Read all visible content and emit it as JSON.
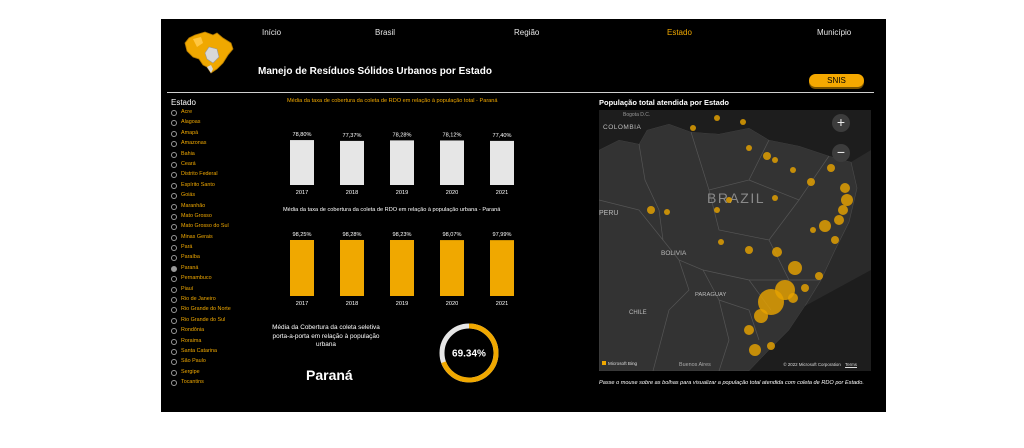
{
  "nav": {
    "items": [
      "Início",
      "Brasil",
      "Região",
      "Estado",
      "Município"
    ],
    "active": "Estado"
  },
  "header": {
    "title": "Manejo de Resíduos Sólidos Urbanos por Estado",
    "snis_button": "SNIS"
  },
  "slicer": {
    "title": "Estado",
    "states": [
      "Acre",
      "Alagoas",
      "Amapá",
      "Amazonas",
      "Bahia",
      "Ceará",
      "Distrito Federal",
      "Espírito Santo",
      "Goiás",
      "Maranhão",
      "Mato Grosso",
      "Mato Grosso do Sul",
      "Minas Gerais",
      "Pará",
      "Paraíba",
      "Paraná",
      "Pernambuco",
      "Piauí",
      "Rio de Janeiro",
      "Rio Grande do Norte",
      "Rio Grande do Sul",
      "Rondônia",
      "Roraima",
      "Santa Catarina",
      "São Paulo",
      "Sergipe",
      "Tocantins"
    ],
    "selected": "Paraná"
  },
  "colors": {
    "accent": "#f0a800",
    "bar_total": "#e6e6e6",
    "bar_urbana": "#f0a800",
    "bubble": "#e6a200"
  },
  "chart_data": [
    {
      "type": "bar",
      "title": "Média da taxa de cobertura da coleta de RDO em relação à população total - Paraná",
      "categories": [
        "2017",
        "2018",
        "2019",
        "2020",
        "2021"
      ],
      "values": [
        78.8,
        77.37,
        78.28,
        78.12,
        77.4
      ],
      "labels": [
        "78,80%",
        "77,37%",
        "78,28%",
        "78,12%",
        "77,40%"
      ]
    },
    {
      "type": "bar",
      "title": "Média da taxa de cobertura da coleta de RDO em relação à população urbana - Paraná",
      "categories": [
        "2017",
        "2018",
        "2019",
        "2020",
        "2021"
      ],
      "values": [
        98.25,
        98.28,
        98.23,
        98.07,
        97.99
      ],
      "labels": [
        "98,25%",
        "98,28%",
        "98,23%",
        "98,07%",
        "97,99%"
      ]
    },
    {
      "type": "pie",
      "title": "Média da Cobertura da coleta seletiva porta-a-porta em relação à população urbana",
      "value": 69.34,
      "label": "69.34%"
    }
  ],
  "card": {
    "state": "Paraná"
  },
  "map": {
    "title": "População total atendida por Estado",
    "labels": {
      "colombia": "COLOMBIA",
      "bogota": "Bogota D.C.",
      "brazil": "BRAZIL",
      "peru": "PERU",
      "bolivia": "BOLIVIA",
      "paraguay": "PARAGUAY",
      "chile": "CHILE",
      "buenos_aires": "Buenos Aires"
    },
    "attribution": "© 2022 Microsoft Corporation",
    "terms": "Terms",
    "bing": "Microsoft Bing",
    "zoom_in": "+",
    "zoom_out": "−",
    "footer": "Passe o mouse sobre as bolhas para visualizar a população total atendida com coleta de RDO por Estado."
  }
}
